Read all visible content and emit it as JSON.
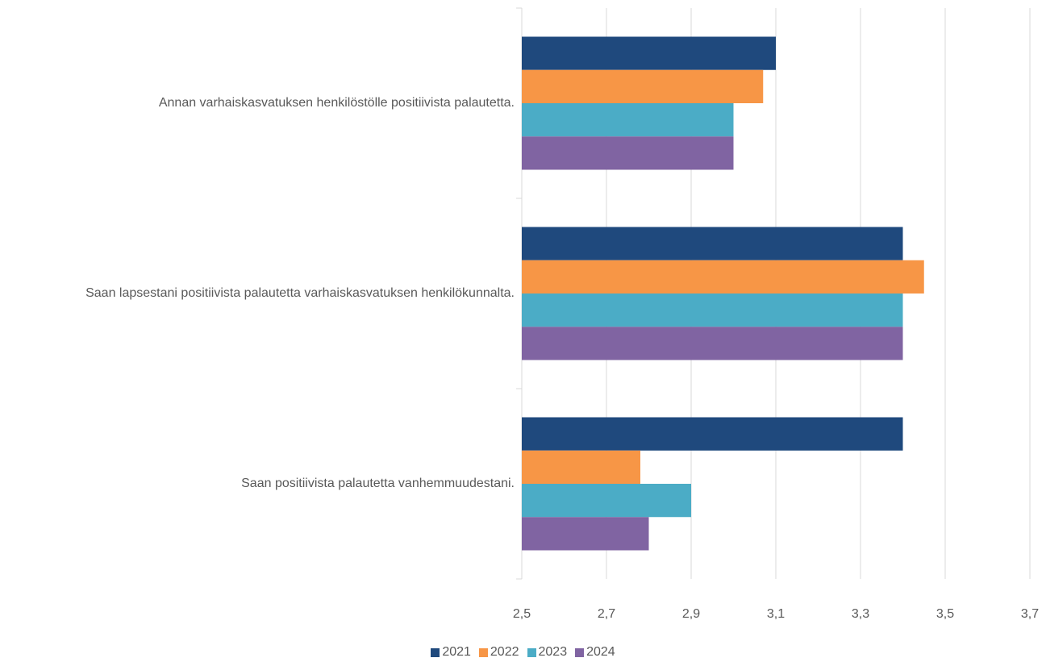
{
  "chart_data": {
    "type": "bar",
    "orientation": "horizontal",
    "categories": [
      "Annan varhaiskasvatuksen henkilöstölle positiivista palautetta.",
      "Saan lapsestani positiivista palautetta varhaiskasvatuksen henkilökunnalta.",
      "Saan positiivista palautetta vanhemmuudestani."
    ],
    "series": [
      {
        "name": "2021",
        "color": "#1f497d",
        "values": [
          3.1,
          3.4,
          3.4
        ]
      },
      {
        "name": "2022",
        "color": "#f79646",
        "values": [
          3.07,
          3.45,
          2.78
        ]
      },
      {
        "name": "2023",
        "color": "#4bacc6",
        "values": [
          3.0,
          3.4,
          2.9
        ]
      },
      {
        "name": "2024",
        "color": "#8064a2",
        "values": [
          3.0,
          3.4,
          2.8
        ]
      }
    ],
    "xlim": [
      2.5,
      3.7
    ],
    "xticks": [
      {
        "value": 2.5,
        "label": "2,5"
      },
      {
        "value": 2.7,
        "label": "2,7"
      },
      {
        "value": 2.9,
        "label": "2,9"
      },
      {
        "value": 3.1,
        "label": "3,1"
      },
      {
        "value": 3.3,
        "label": "3,3"
      },
      {
        "value": 3.5,
        "label": "3,5"
      },
      {
        "value": 3.7,
        "label": "3,7"
      }
    ],
    "grid": true,
    "legend": "bottom"
  }
}
